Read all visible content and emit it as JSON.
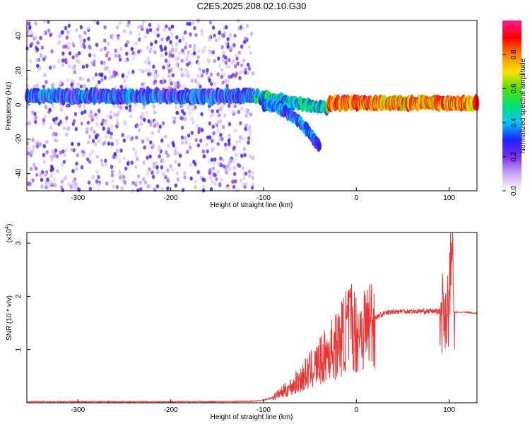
{
  "chart_data": [
    {
      "type": "heatmap",
      "title": "C2E5.2025.208.02.10.G30",
      "xlabel": "Height of straight line (km)",
      "ylabel": "Frequency (Hz)",
      "xlim": [
        -355,
        130
      ],
      "ylim": [
        -50,
        49
      ],
      "x_ticks": [
        "-300",
        "-200",
        "-100",
        "0",
        "100"
      ],
      "y_ticks": [
        "40",
        "20",
        "0",
        "-20",
        "-40"
      ],
      "colorbar": {
        "label": "Normalized spectral amplitude",
        "ticks": [
          "0.0",
          "0.2",
          "0.4",
          "0.6",
          "0.8"
        ],
        "range": [
          0,
          1
        ],
        "colormap": [
          "#ffffff",
          "#c9a8f5",
          "#7a2ff0",
          "#2020ff",
          "#00c8ff",
          "#00e070",
          "#50e000",
          "#ffe000",
          "#ff8000",
          "#ff0000",
          "#ff1a8c"
        ]
      },
      "features": [
        {
          "segment": "noise",
          "x_range": [
            -355,
            -110
          ],
          "amplitude": [
            0.05,
            0.3
          ],
          "freq_range": [
            -50,
            49
          ]
        },
        {
          "segment": "band",
          "x_range": [
            -355,
            -110
          ],
          "center_hz": 5,
          "width_hz": 4,
          "amplitude": [
            0.15,
            0.45
          ]
        },
        {
          "segment": "band",
          "x_range": [
            -110,
            -30
          ],
          "start_hz": 5,
          "end_hz": -2,
          "amplitude": [
            0.3,
            0.6
          ]
        },
        {
          "segment": "branch",
          "x_range": [
            -100,
            -40
          ],
          "start_hz": 0,
          "end_hz": -24,
          "amplitude": [
            0.2,
            0.45
          ]
        },
        {
          "segment": "band",
          "x_range": [
            -30,
            130
          ],
          "center_hz": 1,
          "width_hz": 4,
          "amplitude": [
            0.6,
            0.95
          ]
        }
      ]
    },
    {
      "type": "line",
      "xlabel": "Height of straight line (km)",
      "ylabel": "SNR (10 * v/v)",
      "y_multiplier": "(x10",
      "y_multiplier_exp": "4",
      "xlim": [
        -355,
        130
      ],
      "ylim": [
        0,
        3.2
      ],
      "x_ticks": [
        "-300",
        "-200",
        "-100",
        "0",
        "100"
      ],
      "y_ticks": [
        "1",
        "2",
        "3"
      ],
      "line_color": "#ee3333",
      "series": [
        {
          "x": [
            -355,
            -300,
            -250,
            -200,
            -150,
            -110,
            -100,
            -90,
            -80,
            -70,
            -60,
            -50,
            -40,
            -30,
            -20,
            -15,
            -10,
            -5,
            0,
            10,
            20,
            30,
            40,
            50,
            60,
            70,
            80,
            90,
            95,
            100,
            103,
            105,
            110,
            120,
            130
          ],
          "y": [
            0.02,
            0.02,
            0.02,
            0.02,
            0.02,
            0.03,
            0.05,
            0.1,
            0.2,
            0.3,
            0.45,
            0.6,
            0.75,
            0.95,
            1.1,
            1.25,
            1.4,
            1.5,
            1.3,
            1.45,
            1.6,
            1.68,
            1.72,
            1.72,
            1.72,
            1.72,
            1.72,
            1.72,
            1.75,
            1.8,
            3.15,
            1.7,
            1.7,
            1.7,
            1.68
          ]
        }
      ]
    }
  ]
}
